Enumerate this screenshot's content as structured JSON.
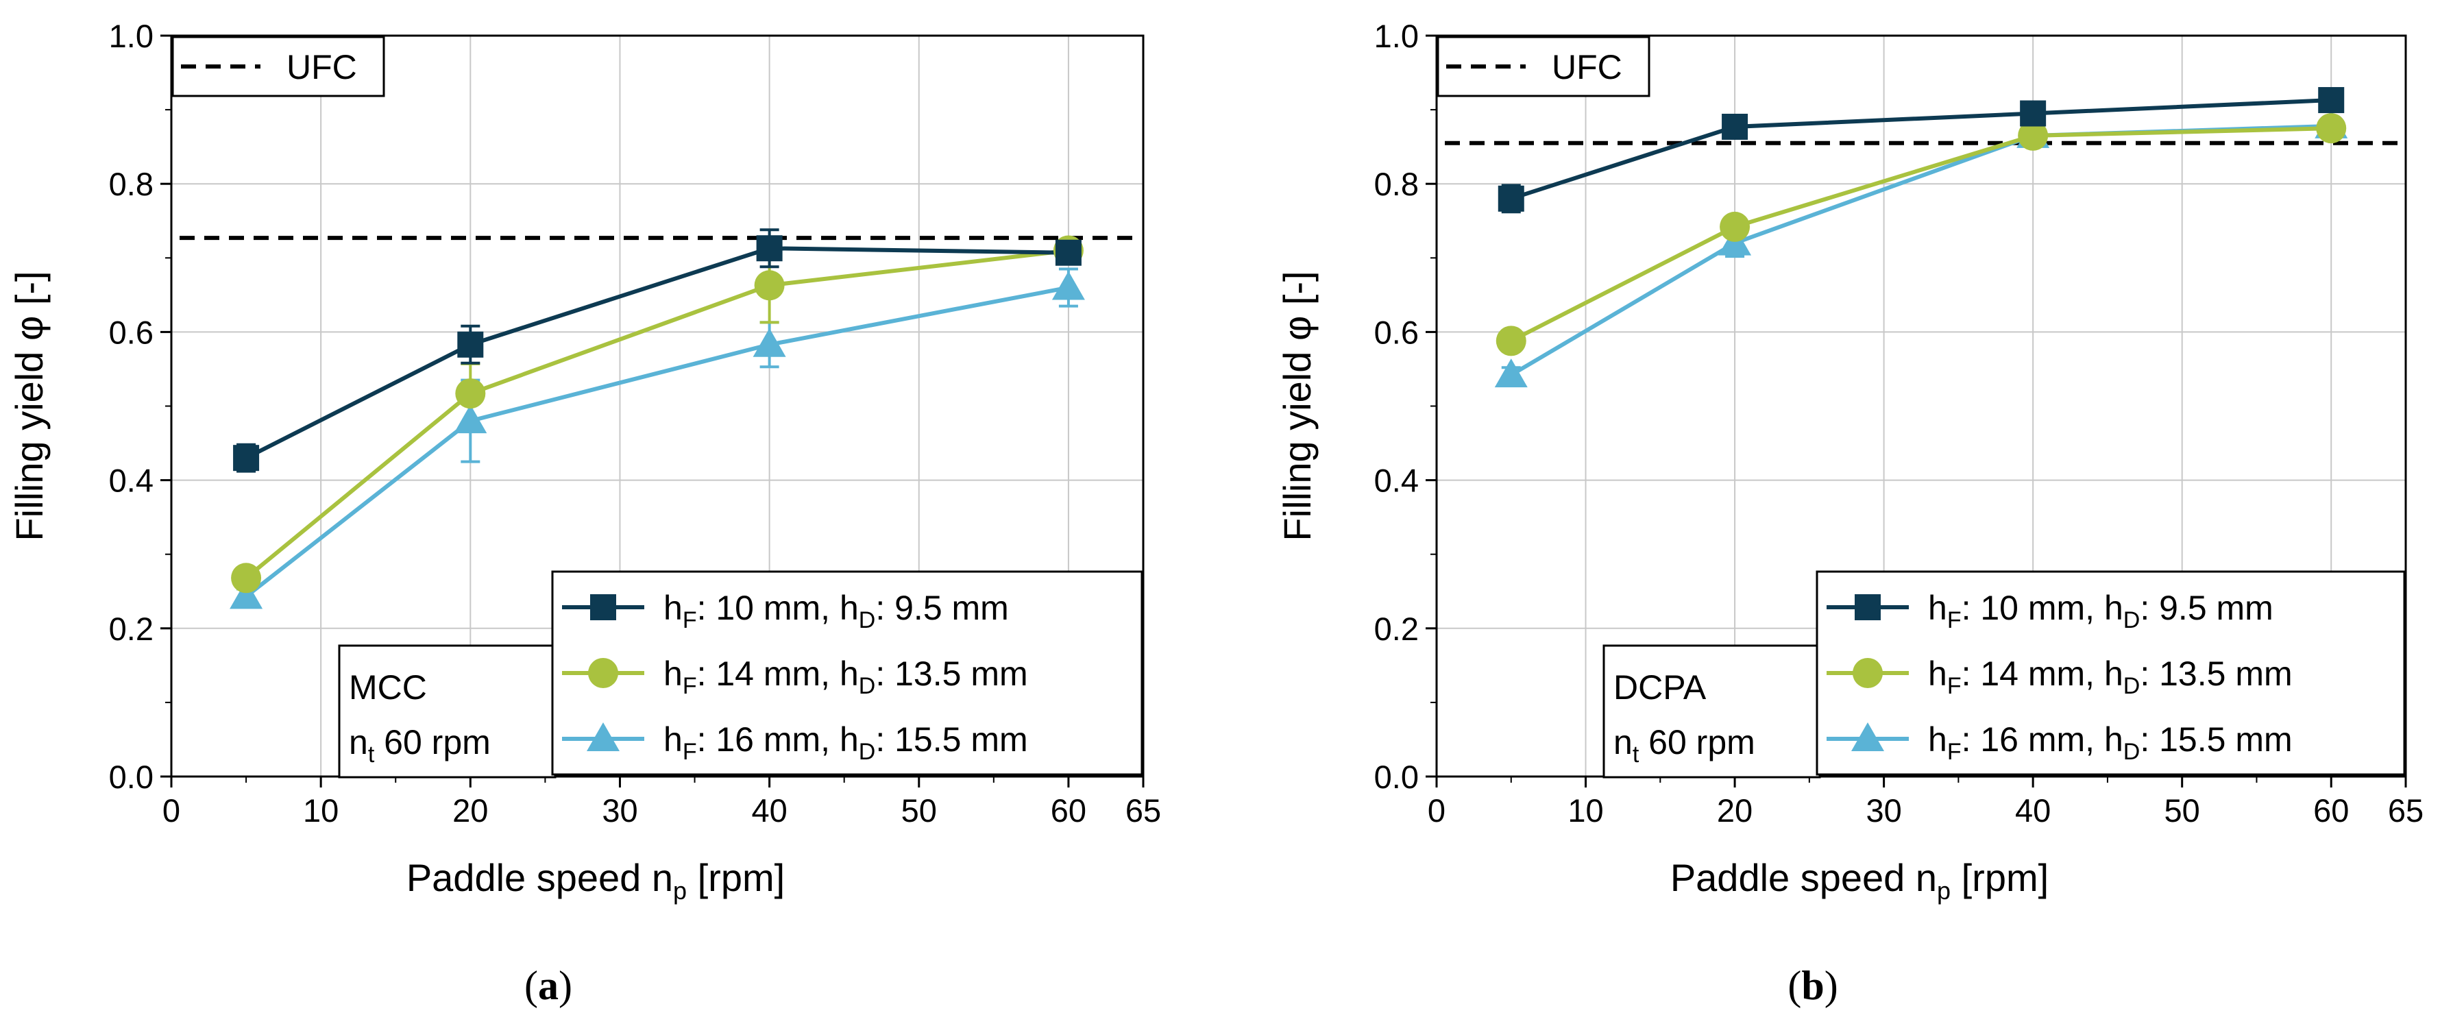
{
  "chart_data": [
    {
      "type": "line",
      "panel_label": [
        "(",
        "a",
        ")"
      ],
      "xlabel": [
        "Paddle speed n",
        "p",
        " [rpm]"
      ],
      "ylabel": "Filling yield φ [-]",
      "xlim": [
        0,
        65
      ],
      "ylim": [
        0.0,
        1.0
      ],
      "xticks": [
        0,
        10,
        20,
        30,
        40,
        50,
        60,
        65
      ],
      "yticks": [
        0.0,
        0.2,
        0.4,
        0.6,
        0.8,
        1.0
      ],
      "ytick_labels": [
        "0.0",
        "0.2",
        "0.4",
        "0.6",
        "0.8",
        "1.0"
      ],
      "x": [
        5,
        20,
        40,
        60
      ],
      "reference": {
        "name": "UFC",
        "value": 0.727
      },
      "annotation": {
        "material": "MCC",
        "speed_prefix": "n",
        "speed_sub": "t",
        "speed_suffix": " 60 rpm"
      },
      "series": [
        {
          "name": "hF: 10 mm, hD: 9.5 mm",
          "marker": "square",
          "color": "#0d3a52",
          "values": [
            0.43,
            0.583,
            0.713,
            0.707
          ],
          "err": [
            0.018,
            0.025,
            0.025,
            0.01
          ]
        },
        {
          "name": "hF: 14 mm, hD: 13.5 mm",
          "marker": "circle",
          "color": "#a9c23f",
          "values": [
            0.268,
            0.517,
            0.663,
            0.71
          ],
          "err": [
            0.012,
            0.04,
            0.05,
            0.01
          ]
        },
        {
          "name": "hF: 16 mm, hD: 15.5 mm",
          "marker": "triangle",
          "color": "#5ab3d6",
          "values": [
            0.243,
            0.48,
            0.583,
            0.66
          ],
          "err": [
            0.01,
            0.055,
            0.03,
            0.025
          ]
        }
      ]
    },
    {
      "type": "line",
      "panel_label": [
        "(",
        "b",
        ")"
      ],
      "xlabel": [
        "Paddle speed n",
        "p",
        " [rpm]"
      ],
      "ylabel": "Filling yield φ [-]",
      "xlim": [
        0,
        65
      ],
      "ylim": [
        0.0,
        1.0
      ],
      "xticks": [
        0,
        10,
        20,
        30,
        40,
        50,
        60,
        65
      ],
      "yticks": [
        0.0,
        0.2,
        0.4,
        0.6,
        0.8,
        1.0
      ],
      "ytick_labels": [
        "0.0",
        "0.2",
        "0.4",
        "0.6",
        "0.8",
        "1.0"
      ],
      "x": [
        5,
        20,
        40,
        60
      ],
      "reference": {
        "name": "UFC",
        "value": 0.855
      },
      "annotation": {
        "material": "DCPA",
        "speed_prefix": "n",
        "speed_sub": "t",
        "speed_suffix": " 60 rpm"
      },
      "series": [
        {
          "name": "hF: 10 mm, hD: 9.5 mm",
          "marker": "square",
          "color": "#0d3a52",
          "values": [
            0.78,
            0.877,
            0.895,
            0.913
          ],
          "err": [
            0.018,
            0.012,
            0.01,
            0.008
          ]
        },
        {
          "name": "hF: 14 mm, hD: 13.5 mm",
          "marker": "circle",
          "color": "#a9c23f",
          "values": [
            0.588,
            0.742,
            0.865,
            0.875
          ],
          "err": [
            0.01,
            0.012,
            0.01,
            0.008
          ]
        },
        {
          "name": "hF: 16 mm, hD: 15.5 mm",
          "marker": "triangle",
          "color": "#5ab3d6",
          "values": [
            0.542,
            0.72,
            0.865,
            0.878
          ],
          "err": [
            0.01,
            0.018,
            0.01,
            0.008
          ]
        }
      ]
    }
  ],
  "legend": {
    "entries": [
      {
        "f_label": "h",
        "f_sub": "F",
        "f_value": ": 10 mm, ",
        "d_label": "h",
        "d_sub": "D",
        "d_value": ": 9.5 mm"
      },
      {
        "f_label": "h",
        "f_sub": "F",
        "f_value": ": 14 mm, ",
        "d_label": "h",
        "d_sub": "D",
        "d_value": ": 13.5 mm"
      },
      {
        "f_label": "h",
        "f_sub": "F",
        "f_value": ": 16 mm, ",
        "d_label": "h",
        "d_sub": "D",
        "d_value": ": 15.5 mm"
      }
    ]
  }
}
